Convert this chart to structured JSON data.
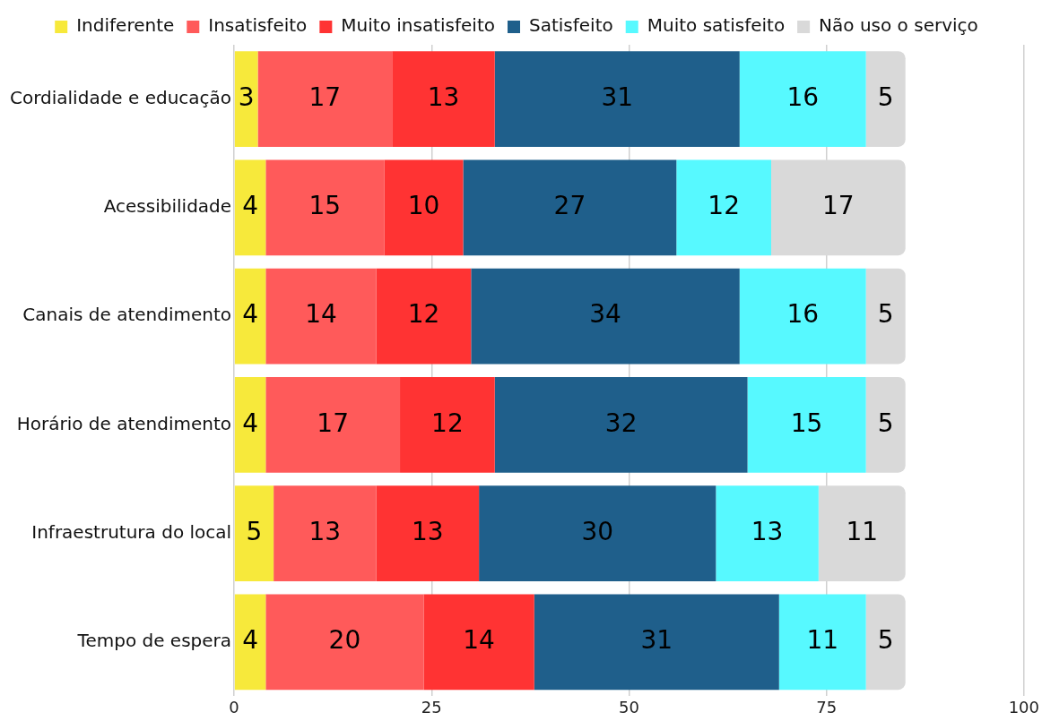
{
  "chart_data": {
    "type": "bar",
    "orientation": "horizontal",
    "stacked": true,
    "categories": [
      "Cordialidade e educação",
      "Acessibilidade",
      "Canais de atendimento",
      "Horário de atendimento",
      "Infraestrutura do local",
      "Tempo de espera"
    ],
    "series": [
      {
        "name": "Indiferente",
        "color": "#f7e93b",
        "values": [
          3,
          4,
          4,
          4,
          5,
          4
        ]
      },
      {
        "name": "Insatisfeito",
        "color": "#ff5a5a",
        "values": [
          17,
          15,
          14,
          17,
          13,
          20
        ]
      },
      {
        "name": "Muito insatisfeito",
        "color": "#ff3333",
        "values": [
          13,
          10,
          12,
          12,
          13,
          14
        ]
      },
      {
        "name": "Satisfeito",
        "color": "#1f5f8b",
        "values": [
          31,
          27,
          34,
          32,
          30,
          31
        ]
      },
      {
        "name": "Muito satisfeito",
        "color": "#57f9ff",
        "values": [
          16,
          12,
          16,
          15,
          13,
          11
        ]
      },
      {
        "name": "Não uso o serviço",
        "color": "#d9d9d9",
        "values": [
          5,
          17,
          5,
          5,
          11,
          5
        ]
      }
    ],
    "xlim": [
      0,
      100
    ],
    "xticks": [
      0,
      25,
      50,
      75,
      100
    ],
    "grid": "x",
    "legend": "top",
    "marker": "square",
    "data_labels": true
  }
}
